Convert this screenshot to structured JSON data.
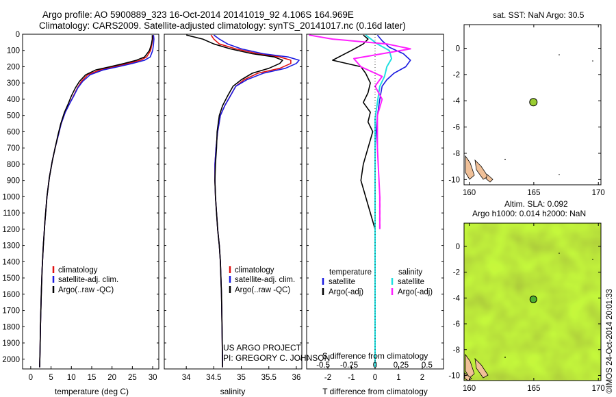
{
  "title": {
    "line1": "Argo profile: AO 5900889_323 16-Oct-2014 20141019_92 4.106S 164.969E",
    "line2": "Climatology: CARS2009. Satellite-adjusted climatology: synTS_20141017.nc (0.16d later)"
  },
  "credit": {
    "line1": "US ARGO PROJECT",
    "line2": "PI: GREGORY C. JOHNSON"
  },
  "watermark": "©IMOS 24-Oct-2014 20:01:33",
  "colors": {
    "climatology": "#e01010",
    "satellite": "#1a1ae0",
    "argo": "#000000",
    "sal_sat": "#20e0e0",
    "sal_argo": "#ff20ff",
    "dot": "#9acd32"
  },
  "chart_data": [
    {
      "id": "temperature",
      "type": "line",
      "xlabel": "temperature (deg C)",
      "xlim": [
        -2,
        31.5
      ],
      "ylim": [
        0,
        2060
      ],
      "xticks": [
        0,
        5,
        10,
        15,
        20,
        25,
        30
      ],
      "yticks": [
        0,
        100,
        200,
        300,
        400,
        500,
        600,
        700,
        800,
        900,
        1000,
        1100,
        1200,
        1300,
        1400,
        1500,
        1600,
        1700,
        1800,
        1900,
        2000
      ],
      "legend": [
        "climatology",
        "satellite-adj. clim.",
        "Argo(..raw -QC)"
      ],
      "series": [
        {
          "name": "climatology",
          "role": "climatology",
          "x": [
            30.1,
            30.0,
            29.8,
            29.5,
            28.5,
            27.0,
            24.0,
            20.5,
            17.0,
            14.0,
            12.5,
            11.5,
            10.5,
            9.5,
            8.5,
            7.5,
            6.8,
            6.0,
            5.3,
            4.6,
            4.0,
            3.5,
            3.1,
            2.8,
            2.6,
            2.4,
            2.3,
            2.2
          ],
          "y": [
            5,
            30,
            60,
            100,
            140,
            160,
            180,
            200,
            220,
            250,
            290,
            330,
            380,
            430,
            480,
            550,
            620,
            700,
            780,
            880,
            1000,
            1150,
            1300,
            1450,
            1600,
            1800,
            1950,
            2050
          ]
        },
        {
          "name": "satellite-adj. clim.",
          "role": "satellite",
          "x": [
            30.2,
            30.3,
            30.2,
            30.0,
            29.4,
            28.0,
            25.0,
            21.5,
            17.8,
            14.6,
            12.8,
            11.6,
            10.6,
            9.5,
            8.5,
            7.5,
            6.8,
            6.0,
            5.3,
            4.6,
            4.0,
            3.5,
            3.1,
            2.8,
            2.6,
            2.4,
            2.3,
            2.2
          ],
          "y": [
            5,
            30,
            60,
            100,
            140,
            160,
            180,
            200,
            220,
            250,
            290,
            330,
            380,
            430,
            480,
            550,
            620,
            700,
            780,
            880,
            1000,
            1150,
            1300,
            1450,
            1600,
            1800,
            1950,
            2050
          ]
        },
        {
          "name": "Argo(..raw -QC)",
          "role": "argo",
          "x": [
            29.9,
            29.9,
            29.7,
            29.2,
            28.0,
            26.0,
            23.0,
            19.5,
            16.0,
            13.5,
            12.0,
            11.0,
            10.0,
            9.2,
            8.3,
            7.4,
            6.7,
            6.0,
            5.3,
            4.6,
            4.0,
            3.5,
            3.1,
            2.8,
            2.6,
            2.4,
            2.3,
            2.2
          ],
          "y": [
            5,
            30,
            60,
            100,
            140,
            160,
            180,
            200,
            220,
            250,
            290,
            330,
            380,
            430,
            480,
            550,
            620,
            700,
            780,
            880,
            1000,
            1150,
            1300,
            1450,
            1600,
            1800,
            1950,
            2050
          ]
        }
      ]
    },
    {
      "id": "salinity",
      "type": "line",
      "xlabel": "salinity",
      "xlim": [
        33.6,
        36.1
      ],
      "ylim": [
        0,
        2060
      ],
      "xticks": [
        34,
        34.5,
        35,
        35.5,
        36
      ],
      "legend": [
        "climatology",
        "satellite-adj. clim.",
        "Argo(..raw -QC)"
      ],
      "series": [
        {
          "name": "climatology",
          "role": "climatology",
          "x": [
            34.45,
            34.5,
            34.6,
            34.9,
            35.3,
            35.7,
            35.9,
            35.9,
            35.7,
            35.3,
            35.05,
            34.9,
            34.8,
            34.7,
            34.62,
            34.57,
            34.54,
            34.52,
            34.52,
            34.53,
            34.55,
            34.57,
            34.6,
            34.62,
            34.64,
            34.65,
            34.66
          ],
          "y": [
            5,
            30,
            60,
            90,
            120,
            140,
            160,
            180,
            210,
            240,
            280,
            320,
            380,
            440,
            500,
            600,
            700,
            800,
            900,
            1000,
            1100,
            1200,
            1300,
            1400,
            1600,
            1800,
            2050
          ]
        },
        {
          "name": "satellite-adj. clim.",
          "role": "satellite",
          "x": [
            34.5,
            34.6,
            34.75,
            35.0,
            35.4,
            35.85,
            36.05,
            36.0,
            35.8,
            35.4,
            35.1,
            34.9,
            34.8,
            34.7,
            34.62,
            34.57,
            34.54,
            34.52,
            34.52,
            34.53,
            34.55,
            34.57,
            34.6,
            34.62,
            34.64,
            34.65,
            34.66
          ],
          "y": [
            5,
            30,
            60,
            90,
            120,
            140,
            160,
            180,
            210,
            240,
            280,
            320,
            380,
            440,
            500,
            600,
            700,
            800,
            900,
            1000,
            1100,
            1200,
            1300,
            1400,
            1600,
            1800,
            2050
          ]
        },
        {
          "name": "Argo(..raw -QC)",
          "role": "argo",
          "x": [
            34.0,
            34.3,
            34.5,
            34.8,
            35.2,
            35.6,
            35.75,
            35.7,
            35.5,
            35.2,
            35.0,
            34.85,
            34.75,
            34.66,
            34.6,
            34.56,
            34.55,
            34.53,
            34.52,
            34.53,
            34.55,
            34.57,
            34.6,
            34.62,
            34.64,
            34.65,
            34.66
          ],
          "y": [
            5,
            30,
            60,
            90,
            120,
            140,
            160,
            180,
            210,
            240,
            280,
            320,
            380,
            440,
            500,
            600,
            700,
            800,
            900,
            1000,
            1100,
            1200,
            1300,
            1400,
            1600,
            1800,
            2050
          ]
        }
      ]
    },
    {
      "id": "difference",
      "type": "line",
      "xlabel": "T difference from climatology",
      "xlabel2": "S difference from climatology",
      "xlim": [
        -2.9,
        2.9
      ],
      "ylim": [
        0,
        2060
      ],
      "xticks": [
        -2,
        -1,
        0,
        1,
        2
      ],
      "xticks2": [
        -0.5,
        -0.25,
        0,
        0.25,
        0.5
      ],
      "xticks2_labels": [
        "-0.5",
        "-0.25",
        "0",
        "0.25",
        "0.5"
      ],
      "legend_headers": [
        "temperature",
        "salinity"
      ],
      "legend": [
        "satellite",
        "Argo(-adj)",
        "satellite",
        "Argo(-adj)"
      ],
      "series": [
        {
          "name": "satellite",
          "role": "satellite",
          "x": [
            0.1,
            0.3,
            0.6,
            1.2,
            1.5,
            1.3,
            0.8,
            0.5,
            0.3,
            0.2,
            0.1,
            0.05,
            0.0
          ],
          "y": [
            5,
            40,
            80,
            120,
            160,
            200,
            240,
            280,
            320,
            400,
            500,
            600,
            700
          ]
        },
        {
          "name": "Argo(-adj)",
          "role": "argo",
          "x": [
            -0.5,
            -0.3,
            -0.5,
            -1.0,
            -1.8,
            -0.6,
            -0.4,
            -0.2,
            -0.3,
            -0.5,
            -0.2,
            -0.3,
            -0.1,
            -0.3,
            -0.5,
            -0.6,
            -0.4,
            -0.2,
            0.0
          ],
          "y": [
            5,
            30,
            60,
            100,
            160,
            200,
            240,
            300,
            360,
            420,
            480,
            540,
            600,
            700,
            800,
            900,
            1000,
            1100,
            1200
          ]
        },
        {
          "name": "satellite",
          "role": "sal_sat",
          "x": [
            -0.4,
            0.1,
            0.6,
            0.7,
            0.5,
            0.4,
            0.2,
            0.1,
            0.0,
            0.0,
            0.0,
            0.0,
            0.0
          ],
          "y": [
            5,
            60,
            100,
            150,
            200,
            260,
            320,
            420,
            520,
            700,
            900,
            1500,
            2050
          ]
        },
        {
          "name": "Argo(-adj)",
          "role": "sal_argo",
          "x": [
            -2.8,
            -1.8,
            0.5,
            1.5,
            -0.9,
            -0.6,
            0.3,
            0.0,
            0.3,
            0.1,
            0.1,
            0.2,
            0.2
          ],
          "y": [
            5,
            30,
            60,
            90,
            150,
            200,
            260,
            320,
            400,
            500,
            700,
            1000,
            1200
          ]
        }
      ]
    },
    {
      "id": "sst_map",
      "type": "scatter",
      "title": "sat. SST: NaN Argo: 30.5",
      "xlim": [
        159.6,
        170.2
      ],
      "ylim": [
        -10.4,
        1.8
      ],
      "xticks": [
        160,
        165,
        170
      ],
      "yticks": [
        0,
        -2,
        -4,
        -6,
        -8,
        -10
      ],
      "points": [
        {
          "x": 164.969,
          "y": -4.106
        }
      ]
    },
    {
      "id": "sla_map",
      "type": "heatmap",
      "title": "Altim. SLA: 0.092",
      "subtitle": "Argo h1000: 0.014 h2000: NaN",
      "xlim": [
        159.6,
        170.2
      ],
      "ylim": [
        -10.4,
        1.8
      ],
      "xticks": [
        160,
        165,
        170
      ],
      "yticks": [
        0,
        -2,
        -4,
        -6,
        -8,
        -10
      ],
      "points": [
        {
          "x": 164.969,
          "y": -4.106
        }
      ]
    }
  ]
}
